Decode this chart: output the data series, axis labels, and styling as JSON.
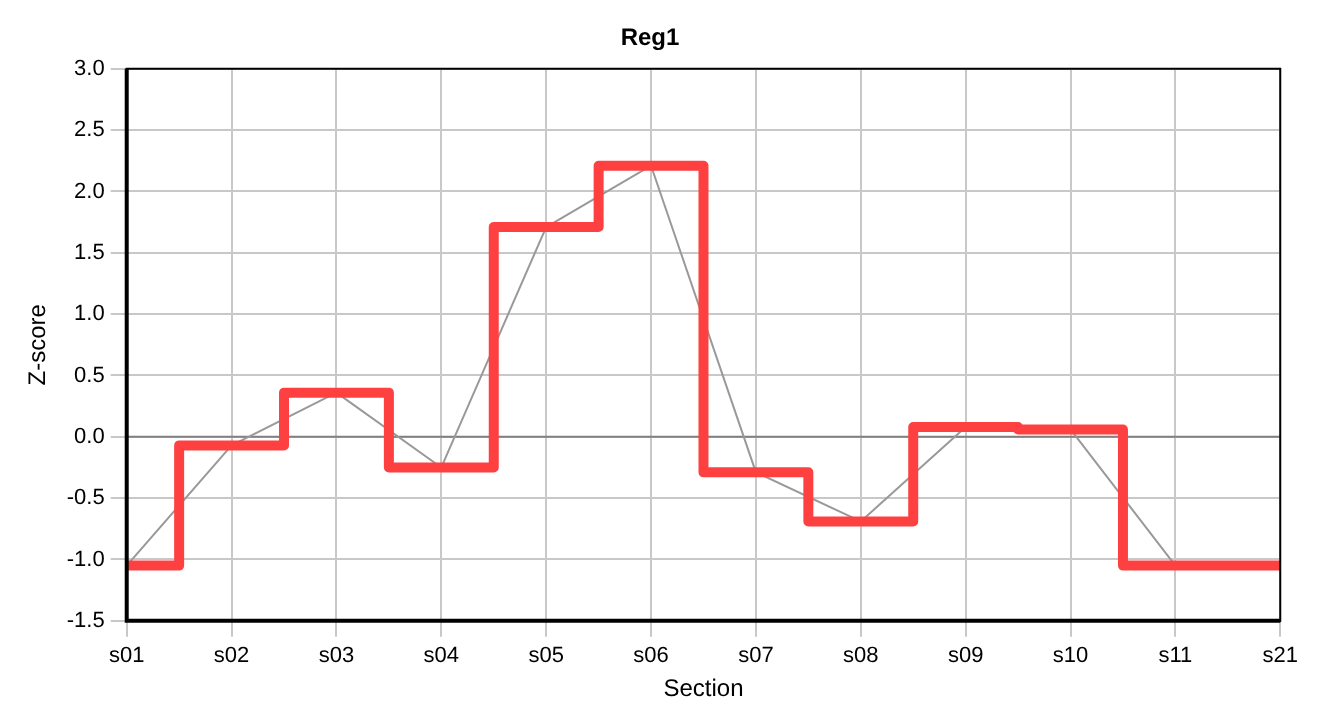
{
  "chart_data": {
    "type": "line",
    "title": "Reg1",
    "xlabel": "Section",
    "ylabel": "Z-score",
    "categories": [
      "s01",
      "s02",
      "s03",
      "s04",
      "s05",
      "s06",
      "s07",
      "s08",
      "s09",
      "s10",
      "s11",
      "s21"
    ],
    "series": [
      {
        "type": "line",
        "color": "#999999",
        "values": [
          -1.05,
          -0.07,
          0.36,
          -0.25,
          1.71,
          2.21,
          -0.29,
          -0.69,
          0.08,
          0.06,
          -1.05,
          -1.05
        ]
      },
      {
        "type": "step",
        "color": "#ff4040",
        "values": [
          -1.05,
          -0.07,
          0.36,
          -0.25,
          1.71,
          2.21,
          -0.29,
          -0.69,
          0.08,
          0.06,
          -1.05,
          -1.05
        ]
      }
    ],
    "ylim": [
      -1.5,
      3.0
    ],
    "yticks": [
      {
        "value": -1.5,
        "label": "-1.5"
      },
      {
        "value": -1,
        "label": "-1.0"
      },
      {
        "value": -0.5,
        "label": "-0.5"
      },
      {
        "value": 0,
        "label": "0.0"
      },
      {
        "value": 0.5,
        "label": "0.5"
      },
      {
        "value": 1,
        "label": "1.0"
      },
      {
        "value": 1.5,
        "label": "1.5"
      },
      {
        "value": 2,
        "label": "2.0"
      },
      {
        "value": 2.5,
        "label": "2.5"
      },
      {
        "value": 3,
        "label": "3.0"
      }
    ],
    "ref_lines": [
      {
        "axis": "y",
        "value": 0,
        "color": "#808080"
      }
    ],
    "grid": true,
    "legend": false,
    "marker": "none",
    "line_style": "solid"
  }
}
